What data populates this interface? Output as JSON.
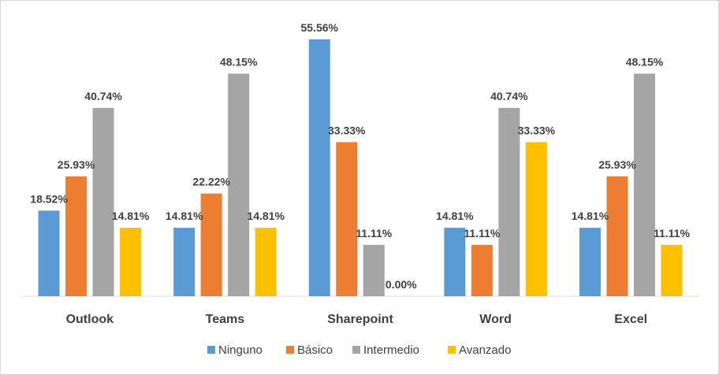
{
  "chart_data": {
    "type": "bar",
    "title": "",
    "xlabel": "",
    "ylabel": "",
    "ylim": [
      0,
      60
    ],
    "grid": false,
    "legend_position": "bottom",
    "categories": [
      "Outlook",
      "Teams",
      "Sharepoint",
      "Word",
      "Excel"
    ],
    "series": [
      {
        "name": "Ninguno",
        "color": "#5b9bd5",
        "values": [
          18.52,
          14.81,
          55.56,
          14.81,
          14.81
        ],
        "labels": [
          "18.52%",
          "14.81%",
          "55.56%",
          "14.81%",
          "14.81%"
        ]
      },
      {
        "name": "Básico",
        "color": "#ed7d31",
        "values": [
          25.93,
          22.22,
          33.33,
          11.11,
          25.93
        ],
        "labels": [
          "25.93%",
          "22.22%",
          "33.33%",
          "11.11%",
          "25.93%"
        ]
      },
      {
        "name": "Intermedio",
        "color": "#a5a5a5",
        "values": [
          40.74,
          48.15,
          11.11,
          40.74,
          48.15
        ],
        "labels": [
          "40.74%",
          "48.15%",
          "11.11%",
          "40.74%",
          "48.15%"
        ]
      },
      {
        "name": "Avanzado",
        "color": "#ffc000",
        "values": [
          14.81,
          14.81,
          0.0,
          33.33,
          11.11
        ],
        "labels": [
          "14.81%",
          "14.81%",
          "0.00%",
          "33.33%",
          "11.11%"
        ]
      }
    ]
  }
}
